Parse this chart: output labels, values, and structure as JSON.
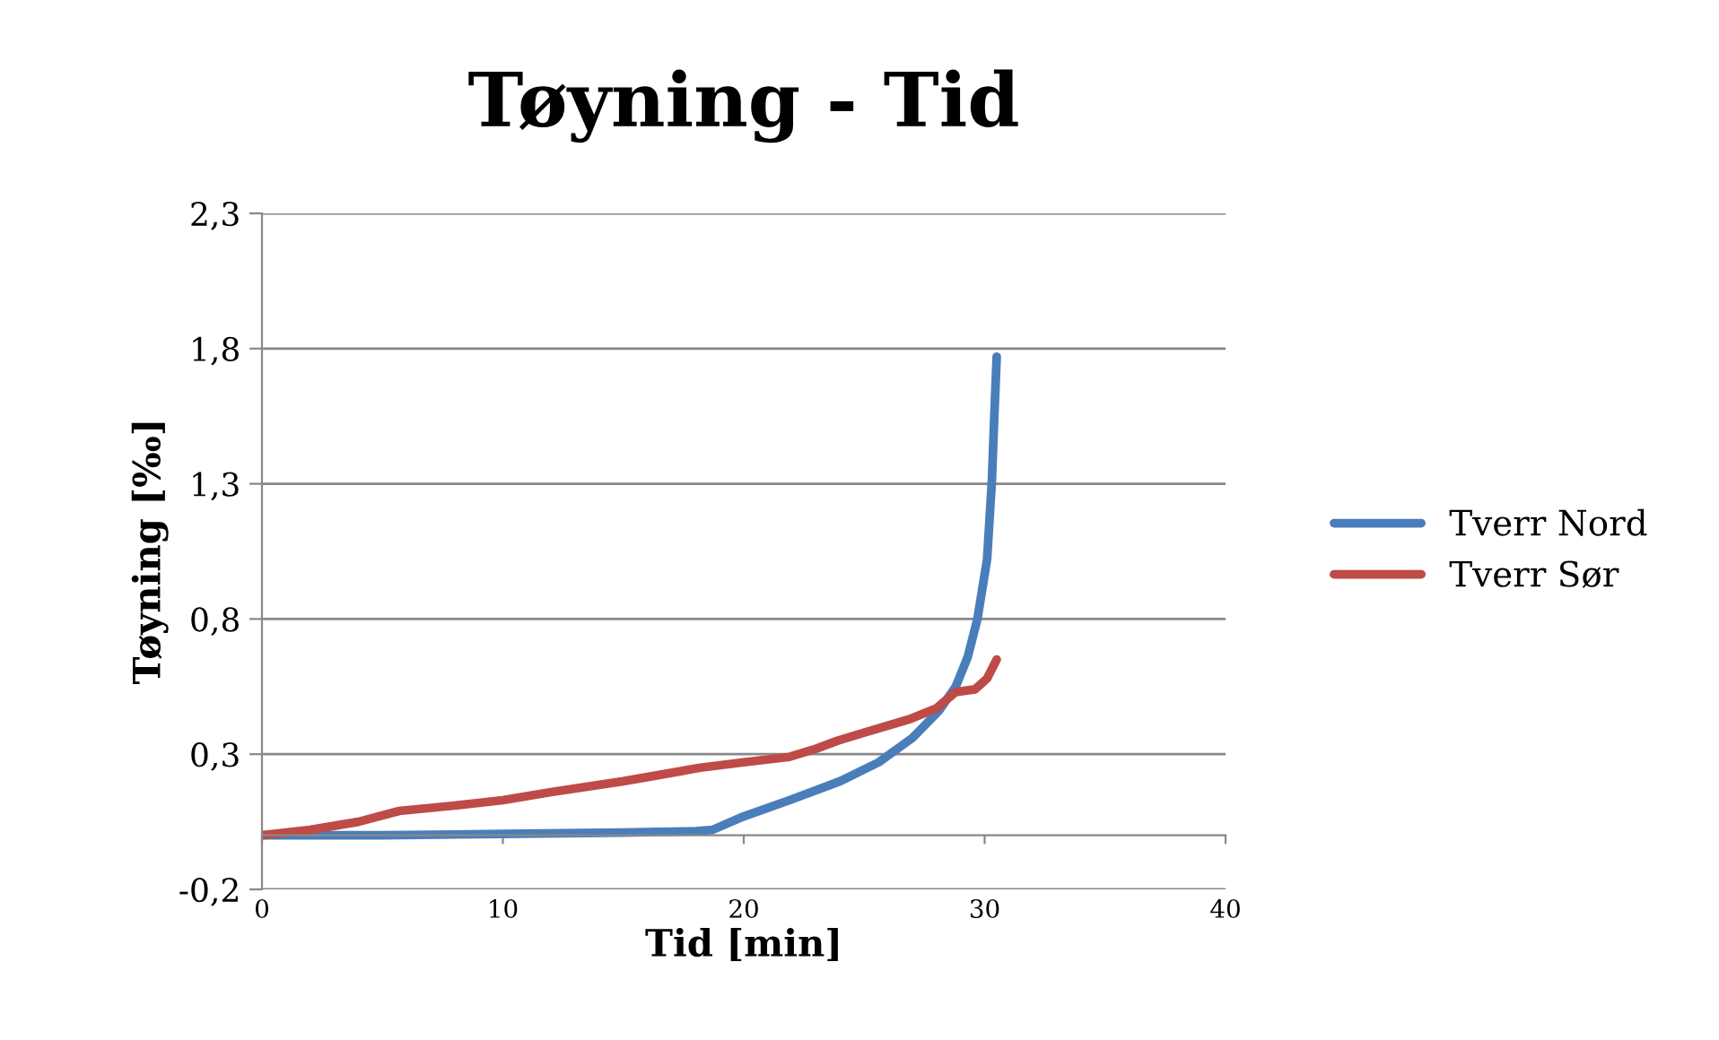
{
  "chart_data": {
    "type": "line",
    "title": "Tøyning - Tid",
    "xlabel": "Tid [min]",
    "ylabel": "Tøyning [‰]",
    "xlim": [
      0,
      40
    ],
    "xticks": [
      0,
      10,
      20,
      30,
      40
    ],
    "ylim": [
      -0.2,
      2.3
    ],
    "yticks": [
      {
        "value": -0.2,
        "label": "-0,2"
      },
      {
        "value": 0.3,
        "label": "0,3"
      },
      {
        "value": 0.8,
        "label": "0,8"
      },
      {
        "value": 1.3,
        "label": "1,3"
      },
      {
        "value": 1.8,
        "label": "1,8"
      },
      {
        "value": 2.3,
        "label": "2,3"
      }
    ],
    "grid": "y",
    "legend": "right",
    "marker": "none",
    "line_style": "solid",
    "series": [
      {
        "name": "Tverr Nord",
        "color": "#4a7ebb",
        "x": [
          0,
          5,
          10,
          15,
          18,
          18.7,
          20,
          21.9,
          24,
          25.6,
          27,
          28.1,
          28.8,
          29.3,
          29.7,
          30.1,
          30.3,
          30.4,
          30.5
        ],
        "values": [
          0,
          0,
          0.005,
          0.01,
          0.015,
          0.02,
          0.07,
          0.13,
          0.2,
          0.27,
          0.36,
          0.46,
          0.55,
          0.66,
          0.8,
          1.02,
          1.31,
          1.55,
          1.77
        ]
      },
      {
        "name": "Tverr Sør",
        "color": "#be4b48",
        "x": [
          0,
          2,
          4,
          5.7,
          8,
          10,
          12,
          15,
          18.2,
          20,
          21.9,
          23,
          23.9,
          25,
          26.9,
          28,
          28.8,
          29.6,
          30.1,
          30.5
        ],
        "values": [
          0,
          0.02,
          0.05,
          0.09,
          0.11,
          0.13,
          0.16,
          0.2,
          0.25,
          0.27,
          0.29,
          0.32,
          0.35,
          0.38,
          0.43,
          0.47,
          0.53,
          0.54,
          0.58,
          0.65
        ]
      }
    ]
  }
}
